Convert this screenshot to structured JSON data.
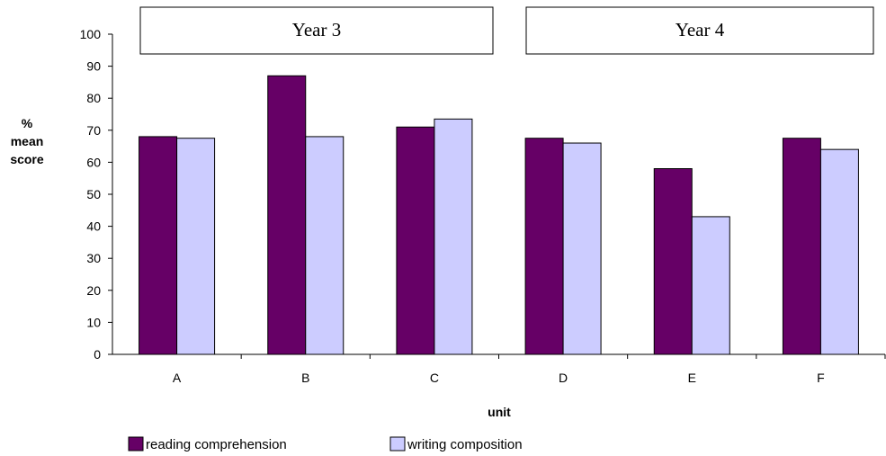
{
  "chart_data": {
    "type": "bar",
    "categories": [
      "A",
      "B",
      "C",
      "D",
      "E",
      "F"
    ],
    "series": [
      {
        "name": "reading comprehension",
        "values": [
          68,
          87,
          71,
          67.5,
          58,
          67.5
        ],
        "color": "#660066"
      },
      {
        "name": "writing composition",
        "values": [
          67.5,
          68,
          73.5,
          66,
          43,
          64
        ],
        "color": "#ccccff"
      }
    ],
    "groups": [
      {
        "label": "Year 3",
        "categories": [
          "A",
          "B",
          "C"
        ]
      },
      {
        "label": "Year 4",
        "categories": [
          "D",
          "E",
          "F"
        ]
      }
    ],
    "xlabel": "unit",
    "ylabel": [
      "%",
      "mean",
      "score"
    ],
    "ylim": [
      0,
      100
    ],
    "yticks": [
      0,
      10,
      20,
      30,
      40,
      50,
      60,
      70,
      80,
      90,
      100
    ],
    "grid": false,
    "legend": "bottom-left"
  }
}
